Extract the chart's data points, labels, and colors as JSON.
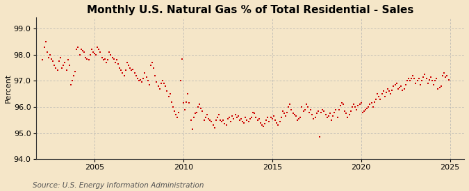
{
  "title": "Monthly U.S. Natural Gas % of Total Residential - Sales",
  "ylabel": "Percent",
  "source": "Source: U.S. Energy Information Administration",
  "background_color": "#f5e6c8",
  "plot_bg_color": "#f5e6c8",
  "dot_color": "#cc0000",
  "ylim": [
    94.0,
    99.45
  ],
  "yticks": [
    94.0,
    95.0,
    96.0,
    97.0,
    98.0,
    99.0
  ],
  "xlim_start": 2001.7,
  "xlim_end": 2025.8,
  "xticks": [
    2005,
    2010,
    2015,
    2020,
    2025
  ],
  "grid_color": "#b0b0b0",
  "title_fontsize": 11,
  "label_fontsize": 8,
  "tick_fontsize": 8,
  "source_fontsize": 7.5,
  "dot_size": 4,
  "data_points": [
    [
      2002.08,
      97.8
    ],
    [
      2002.17,
      98.3
    ],
    [
      2002.25,
      98.5
    ],
    [
      2002.33,
      98.1
    ],
    [
      2002.42,
      97.9
    ],
    [
      2002.5,
      98.0
    ],
    [
      2002.58,
      97.85
    ],
    [
      2002.67,
      97.75
    ],
    [
      2002.75,
      97.6
    ],
    [
      2002.83,
      97.5
    ],
    [
      2002.92,
      97.4
    ],
    [
      2003.0,
      97.75
    ],
    [
      2003.08,
      97.9
    ],
    [
      2003.17,
      97.5
    ],
    [
      2003.25,
      97.6
    ],
    [
      2003.33,
      97.7
    ],
    [
      2003.42,
      97.4
    ],
    [
      2003.5,
      97.8
    ],
    [
      2003.58,
      97.6
    ],
    [
      2003.67,
      96.85
    ],
    [
      2003.75,
      97.0
    ],
    [
      2003.83,
      97.2
    ],
    [
      2003.92,
      97.35
    ],
    [
      2004.0,
      98.2
    ],
    [
      2004.08,
      98.3
    ],
    [
      2004.17,
      98.0
    ],
    [
      2004.25,
      98.2
    ],
    [
      2004.33,
      98.15
    ],
    [
      2004.42,
      98.1
    ],
    [
      2004.5,
      97.9
    ],
    [
      2004.58,
      97.85
    ],
    [
      2004.67,
      97.8
    ],
    [
      2004.75,
      98.0
    ],
    [
      2004.83,
      98.2
    ],
    [
      2004.92,
      98.1
    ],
    [
      2005.0,
      98.05
    ],
    [
      2005.08,
      98.0
    ],
    [
      2005.17,
      98.3
    ],
    [
      2005.25,
      98.2
    ],
    [
      2005.33,
      98.1
    ],
    [
      2005.42,
      97.9
    ],
    [
      2005.5,
      97.8
    ],
    [
      2005.58,
      97.85
    ],
    [
      2005.67,
      97.7
    ],
    [
      2005.75,
      97.8
    ],
    [
      2005.83,
      98.1
    ],
    [
      2005.92,
      98.0
    ],
    [
      2006.0,
      97.9
    ],
    [
      2006.08,
      97.85
    ],
    [
      2006.17,
      97.7
    ],
    [
      2006.25,
      97.8
    ],
    [
      2006.33,
      97.65
    ],
    [
      2006.42,
      97.5
    ],
    [
      2006.5,
      97.4
    ],
    [
      2006.58,
      97.3
    ],
    [
      2006.67,
      97.2
    ],
    [
      2006.75,
      97.4
    ],
    [
      2006.83,
      97.7
    ],
    [
      2006.92,
      97.6
    ],
    [
      2007.0,
      97.5
    ],
    [
      2007.08,
      97.4
    ],
    [
      2007.17,
      97.45
    ],
    [
      2007.25,
      97.3
    ],
    [
      2007.33,
      97.2
    ],
    [
      2007.42,
      97.1
    ],
    [
      2007.5,
      97.0
    ],
    [
      2007.58,
      97.05
    ],
    [
      2007.67,
      96.95
    ],
    [
      2007.75,
      97.1
    ],
    [
      2007.83,
      97.3
    ],
    [
      2007.92,
      97.15
    ],
    [
      2008.0,
      97.0
    ],
    [
      2008.08,
      96.85
    ],
    [
      2008.17,
      97.6
    ],
    [
      2008.25,
      97.7
    ],
    [
      2008.33,
      97.5
    ],
    [
      2008.42,
      97.2
    ],
    [
      2008.5,
      96.95
    ],
    [
      2008.58,
      96.8
    ],
    [
      2008.67,
      96.7
    ],
    [
      2008.75,
      96.9
    ],
    [
      2008.83,
      97.0
    ],
    [
      2008.92,
      96.9
    ],
    [
      2009.0,
      96.8
    ],
    [
      2009.08,
      96.6
    ],
    [
      2009.17,
      96.4
    ],
    [
      2009.25,
      96.5
    ],
    [
      2009.33,
      96.2
    ],
    [
      2009.42,
      96.0
    ],
    [
      2009.5,
      95.85
    ],
    [
      2009.58,
      95.7
    ],
    [
      2009.67,
      95.6
    ],
    [
      2009.75,
      95.8
    ],
    [
      2009.83,
      97.0
    ],
    [
      2009.92,
      97.85
    ],
    [
      2010.0,
      96.15
    ],
    [
      2010.08,
      95.9
    ],
    [
      2010.17,
      96.2
    ],
    [
      2010.25,
      96.5
    ],
    [
      2010.33,
      96.15
    ],
    [
      2010.42,
      95.5
    ],
    [
      2010.5,
      95.15
    ],
    [
      2010.58,
      95.6
    ],
    [
      2010.67,
      95.75
    ],
    [
      2010.75,
      95.8
    ],
    [
      2010.83,
      96.0
    ],
    [
      2010.92,
      96.1
    ],
    [
      2011.0,
      95.95
    ],
    [
      2011.08,
      95.85
    ],
    [
      2011.17,
      95.5
    ],
    [
      2011.25,
      95.6
    ],
    [
      2011.33,
      95.7
    ],
    [
      2011.42,
      95.55
    ],
    [
      2011.5,
      95.5
    ],
    [
      2011.58,
      95.45
    ],
    [
      2011.67,
      95.3
    ],
    [
      2011.75,
      95.2
    ],
    [
      2011.83,
      95.5
    ],
    [
      2011.92,
      95.6
    ],
    [
      2012.0,
      95.7
    ],
    [
      2012.08,
      95.5
    ],
    [
      2012.17,
      95.45
    ],
    [
      2012.25,
      95.5
    ],
    [
      2012.33,
      95.35
    ],
    [
      2012.42,
      95.3
    ],
    [
      2012.5,
      95.55
    ],
    [
      2012.58,
      95.6
    ],
    [
      2012.67,
      95.45
    ],
    [
      2012.75,
      95.65
    ],
    [
      2012.83,
      95.55
    ],
    [
      2012.92,
      95.7
    ],
    [
      2013.0,
      95.6
    ],
    [
      2013.08,
      95.65
    ],
    [
      2013.17,
      95.5
    ],
    [
      2013.25,
      95.55
    ],
    [
      2013.33,
      95.45
    ],
    [
      2013.42,
      95.4
    ],
    [
      2013.5,
      95.6
    ],
    [
      2013.58,
      95.5
    ],
    [
      2013.67,
      95.45
    ],
    [
      2013.75,
      95.55
    ],
    [
      2013.83,
      95.6
    ],
    [
      2013.92,
      95.8
    ],
    [
      2014.0,
      95.75
    ],
    [
      2014.08,
      95.6
    ],
    [
      2014.17,
      95.5
    ],
    [
      2014.25,
      95.55
    ],
    [
      2014.33,
      95.4
    ],
    [
      2014.42,
      95.3
    ],
    [
      2014.5,
      95.25
    ],
    [
      2014.58,
      95.35
    ],
    [
      2014.67,
      95.5
    ],
    [
      2014.75,
      95.6
    ],
    [
      2014.83,
      95.45
    ],
    [
      2014.92,
      95.6
    ],
    [
      2015.0,
      95.55
    ],
    [
      2015.08,
      95.65
    ],
    [
      2015.17,
      95.5
    ],
    [
      2015.25,
      95.4
    ],
    [
      2015.33,
      95.3
    ],
    [
      2015.42,
      95.45
    ],
    [
      2015.5,
      95.6
    ],
    [
      2015.58,
      95.85
    ],
    [
      2015.67,
      95.75
    ],
    [
      2015.75,
      95.65
    ],
    [
      2015.83,
      95.8
    ],
    [
      2015.92,
      96.0
    ],
    [
      2016.0,
      96.1
    ],
    [
      2016.08,
      95.9
    ],
    [
      2016.17,
      95.75
    ],
    [
      2016.25,
      95.7
    ],
    [
      2016.33,
      95.65
    ],
    [
      2016.42,
      95.5
    ],
    [
      2016.5,
      95.55
    ],
    [
      2016.58,
      95.6
    ],
    [
      2016.67,
      96.0
    ],
    [
      2016.75,
      95.85
    ],
    [
      2016.83,
      95.9
    ],
    [
      2016.92,
      96.1
    ],
    [
      2017.0,
      96.0
    ],
    [
      2017.08,
      95.8
    ],
    [
      2017.17,
      95.9
    ],
    [
      2017.25,
      95.7
    ],
    [
      2017.33,
      95.55
    ],
    [
      2017.42,
      95.6
    ],
    [
      2017.5,
      95.75
    ],
    [
      2017.58,
      95.85
    ],
    [
      2017.67,
      94.85
    ],
    [
      2017.75,
      95.8
    ],
    [
      2017.83,
      95.9
    ],
    [
      2017.92,
      95.85
    ],
    [
      2018.0,
      95.7
    ],
    [
      2018.08,
      95.6
    ],
    [
      2018.17,
      95.65
    ],
    [
      2018.25,
      95.75
    ],
    [
      2018.33,
      95.5
    ],
    [
      2018.42,
      95.65
    ],
    [
      2018.5,
      95.8
    ],
    [
      2018.58,
      95.9
    ],
    [
      2018.67,
      95.6
    ],
    [
      2018.75,
      95.9
    ],
    [
      2018.83,
      96.05
    ],
    [
      2018.92,
      96.15
    ],
    [
      2019.0,
      96.1
    ],
    [
      2019.08,
      95.85
    ],
    [
      2019.17,
      95.75
    ],
    [
      2019.25,
      95.6
    ],
    [
      2019.33,
      95.7
    ],
    [
      2019.42,
      95.85
    ],
    [
      2019.5,
      96.0
    ],
    [
      2019.58,
      96.1
    ],
    [
      2019.67,
      96.0
    ],
    [
      2019.75,
      95.9
    ],
    [
      2019.83,
      96.05
    ],
    [
      2019.92,
      96.1
    ],
    [
      2020.0,
      96.15
    ],
    [
      2020.08,
      95.8
    ],
    [
      2020.17,
      95.85
    ],
    [
      2020.25,
      95.9
    ],
    [
      2020.33,
      95.95
    ],
    [
      2020.42,
      96.0
    ],
    [
      2020.5,
      96.1
    ],
    [
      2020.58,
      96.15
    ],
    [
      2020.67,
      96.0
    ],
    [
      2020.75,
      96.2
    ],
    [
      2020.83,
      96.3
    ],
    [
      2020.92,
      96.5
    ],
    [
      2021.0,
      96.4
    ],
    [
      2021.08,
      96.3
    ],
    [
      2021.17,
      96.5
    ],
    [
      2021.25,
      96.6
    ],
    [
      2021.33,
      96.4
    ],
    [
      2021.42,
      96.55
    ],
    [
      2021.5,
      96.7
    ],
    [
      2021.58,
      96.6
    ],
    [
      2021.67,
      96.5
    ],
    [
      2021.75,
      96.65
    ],
    [
      2021.83,
      96.8
    ],
    [
      2021.92,
      96.85
    ],
    [
      2022.0,
      96.9
    ],
    [
      2022.08,
      96.7
    ],
    [
      2022.17,
      96.75
    ],
    [
      2022.25,
      96.8
    ],
    [
      2022.33,
      96.65
    ],
    [
      2022.42,
      96.7
    ],
    [
      2022.5,
      96.85
    ],
    [
      2022.58,
      97.0
    ],
    [
      2022.67,
      97.1
    ],
    [
      2022.75,
      97.0
    ],
    [
      2022.83,
      97.1
    ],
    [
      2022.92,
      97.2
    ],
    [
      2023.0,
      97.1
    ],
    [
      2023.08,
      96.9
    ],
    [
      2023.17,
      97.0
    ],
    [
      2023.25,
      97.1
    ],
    [
      2023.33,
      96.85
    ],
    [
      2023.42,
      97.0
    ],
    [
      2023.5,
      97.15
    ],
    [
      2023.58,
      97.25
    ],
    [
      2023.67,
      97.1
    ],
    [
      2023.75,
      96.9
    ],
    [
      2023.83,
      97.05
    ],
    [
      2023.92,
      97.15
    ],
    [
      2024.0,
      97.0
    ],
    [
      2024.08,
      96.85
    ],
    [
      2024.17,
      97.0
    ],
    [
      2024.25,
      97.1
    ],
    [
      2024.33,
      96.7
    ],
    [
      2024.42,
      96.75
    ],
    [
      2024.5,
      96.8
    ],
    [
      2024.58,
      97.2
    ],
    [
      2024.67,
      97.3
    ],
    [
      2024.75,
      97.15
    ],
    [
      2024.83,
      97.2
    ],
    [
      2024.92,
      97.05
    ]
  ]
}
